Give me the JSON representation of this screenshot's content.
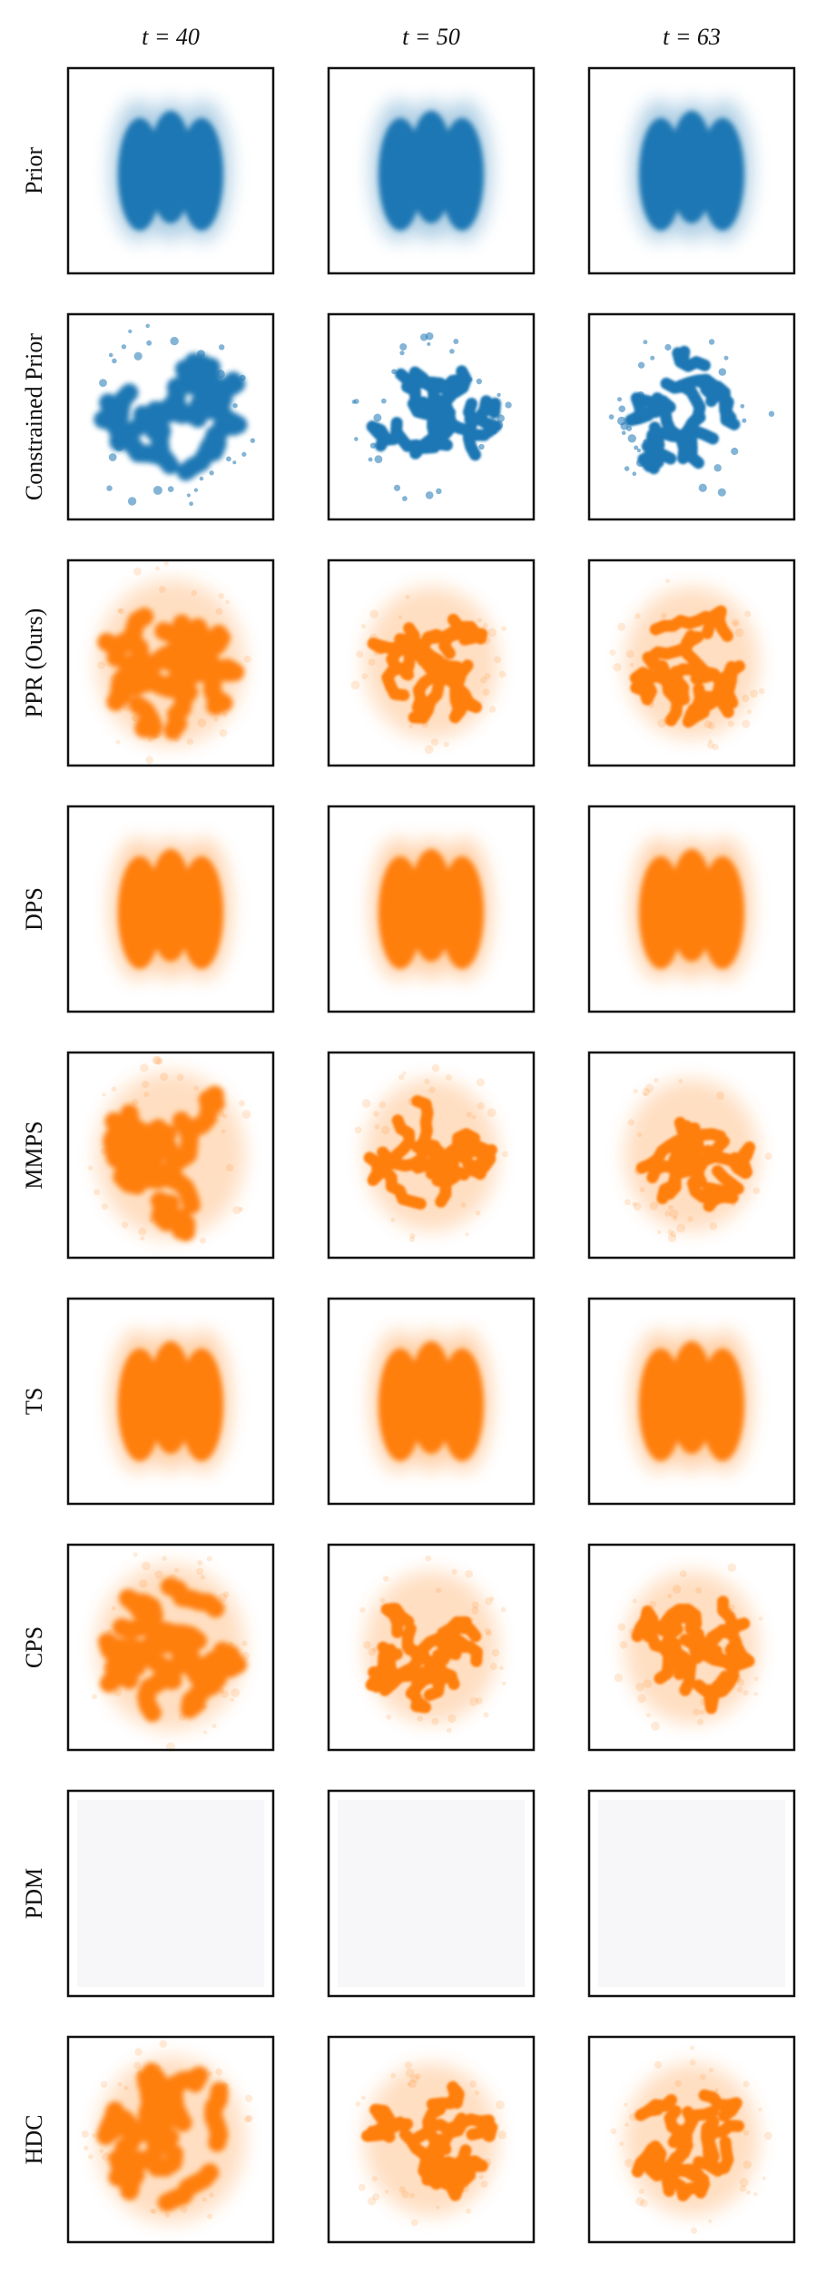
{
  "columns": [
    "t = 40",
    "t = 50",
    "t = 63"
  ],
  "rows": [
    "Prior",
    "Constrained Prior",
    "PPR (Ours)",
    "DPS",
    "MMPS",
    "TS",
    "CPS",
    "PDM",
    "HDC"
  ]
}
